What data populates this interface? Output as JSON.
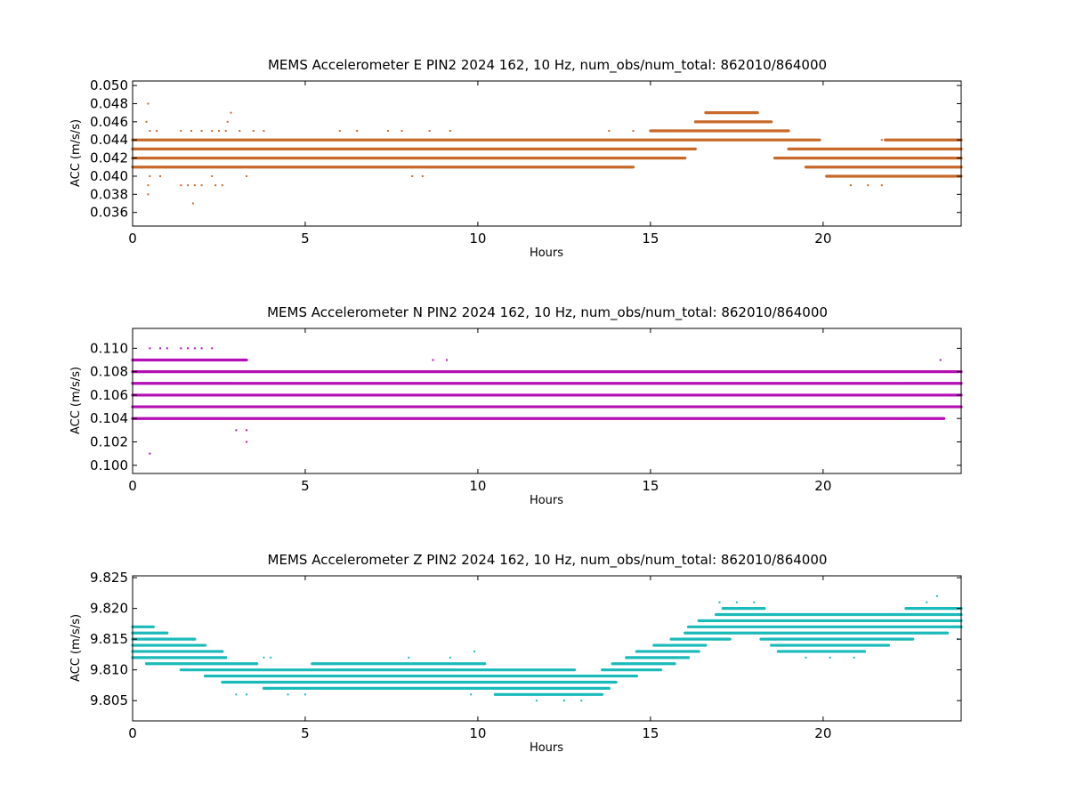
{
  "chart_data": [
    {
      "type": "scatter",
      "title": "MEMS Accelerometer E PIN2 2024 162, 10 Hz, num_obs/num_total: 862010/864000",
      "xlabel": "Hours",
      "ylabel": "ACC (m/s/s)",
      "xlim": [
        0,
        24
      ],
      "ylim": [
        0.0345,
        0.0505
      ],
      "xticks": [
        0,
        5,
        10,
        15,
        20
      ],
      "yticks": [
        0.036,
        0.038,
        0.04,
        0.042,
        0.044,
        0.046,
        0.048,
        0.05
      ],
      "color": "#c8692a",
      "grid": false,
      "legend": "none",
      "bands": [
        {
          "y": 0.047,
          "x": [
            16.6,
            18.1
          ]
        },
        {
          "y": 0.046,
          "x": [
            16.3,
            18.5
          ]
        },
        {
          "y": 0.045,
          "x": [
            15.0,
            19.0
          ]
        },
        {
          "y": 0.044,
          "x": [
            0.0,
            19.9
          ]
        },
        {
          "y": 0.044,
          "x": [
            21.8,
            24.0
          ]
        },
        {
          "y": 0.043,
          "x": [
            0.0,
            16.3
          ]
        },
        {
          "y": 0.043,
          "x": [
            19.0,
            24.0
          ]
        },
        {
          "y": 0.042,
          "x": [
            0.0,
            16.0
          ]
        },
        {
          "y": 0.042,
          "x": [
            18.6,
            24.0
          ]
        },
        {
          "y": 0.041,
          "x": [
            0.0,
            14.5
          ]
        },
        {
          "y": 0.041,
          "x": [
            19.5,
            24.0
          ]
        },
        {
          "y": 0.04,
          "x": [
            20.1,
            24.0
          ]
        }
      ],
      "points": [
        [
          0.45,
          0.048
        ],
        [
          0.4,
          0.046
        ],
        [
          0.5,
          0.045
        ],
        [
          0.7,
          0.045
        ],
        [
          1.4,
          0.045
        ],
        [
          1.7,
          0.045
        ],
        [
          2.0,
          0.045
        ],
        [
          2.3,
          0.045
        ],
        [
          2.5,
          0.045
        ],
        [
          2.7,
          0.045
        ],
        [
          2.85,
          0.047
        ],
        [
          2.75,
          0.046
        ],
        [
          3.1,
          0.045
        ],
        [
          3.5,
          0.045
        ],
        [
          3.8,
          0.045
        ],
        [
          6.0,
          0.045
        ],
        [
          6.5,
          0.045
        ],
        [
          7.4,
          0.045
        ],
        [
          7.8,
          0.045
        ],
        [
          8.6,
          0.045
        ],
        [
          9.2,
          0.045
        ],
        [
          13.8,
          0.045
        ],
        [
          14.5,
          0.045
        ],
        [
          0.5,
          0.04
        ],
        [
          0.8,
          0.04
        ],
        [
          0.45,
          0.039
        ],
        [
          0.45,
          0.038
        ],
        [
          1.4,
          0.039
        ],
        [
          1.6,
          0.039
        ],
        [
          1.8,
          0.039
        ],
        [
          2.0,
          0.039
        ],
        [
          2.3,
          0.04
        ],
        [
          2.4,
          0.039
        ],
        [
          2.6,
          0.039
        ],
        [
          1.75,
          0.037
        ],
        [
          3.3,
          0.04
        ],
        [
          8.1,
          0.04
        ],
        [
          8.4,
          0.04
        ],
        [
          20.8,
          0.039
        ],
        [
          21.3,
          0.039
        ],
        [
          21.7,
          0.039
        ],
        [
          22.0,
          0.04
        ],
        [
          21.7,
          0.044
        ],
        [
          23.5,
          0.04
        ],
        [
          16.0,
          0.045
        ]
      ]
    },
    {
      "type": "scatter",
      "title": "MEMS Accelerometer N PIN2 2024 162, 10 Hz, num_obs/num_total: 862010/864000",
      "xlabel": "Hours",
      "ylabel": "ACC (m/s/s)",
      "xlim": [
        0,
        24
      ],
      "ylim": [
        0.0993,
        0.1117
      ],
      "xticks": [
        0,
        5,
        10,
        15,
        20
      ],
      "yticks": [
        0.1,
        0.102,
        0.104,
        0.106,
        0.108,
        0.11
      ],
      "color": "#b40fb4",
      "grid": false,
      "legend": "none",
      "bands": [
        {
          "y": 0.109,
          "x": [
            0.0,
            3.3
          ]
        },
        {
          "y": 0.108,
          "x": [
            0.0,
            24.0
          ]
        },
        {
          "y": 0.107,
          "x": [
            0.0,
            24.0
          ]
        },
        {
          "y": 0.106,
          "x": [
            0.0,
            24.0
          ]
        },
        {
          "y": 0.105,
          "x": [
            0.0,
            24.0
          ]
        },
        {
          "y": 0.104,
          "x": [
            0.0,
            23.5
          ]
        }
      ],
      "points": [
        [
          0.5,
          0.11
        ],
        [
          0.8,
          0.11
        ],
        [
          1.0,
          0.11
        ],
        [
          1.4,
          0.11
        ],
        [
          1.6,
          0.11
        ],
        [
          1.8,
          0.11
        ],
        [
          2.0,
          0.11
        ],
        [
          2.3,
          0.11
        ],
        [
          8.7,
          0.109
        ],
        [
          9.1,
          0.109
        ],
        [
          23.4,
          0.109
        ],
        [
          3.0,
          0.103
        ],
        [
          3.3,
          0.103
        ],
        [
          3.3,
          0.102
        ],
        [
          0.5,
          0.101
        ]
      ]
    },
    {
      "type": "scatter",
      "title": "MEMS Accelerometer Z PIN2 2024 162, 10 Hz, num_obs/num_total: 862010/864000",
      "xlabel": "Hours",
      "ylabel": "ACC (m/s/s)",
      "xlim": [
        0,
        24
      ],
      "ylim": [
        9.8017,
        9.8253
      ],
      "xticks": [
        0,
        5,
        10,
        15,
        20
      ],
      "yticks": [
        9.805,
        9.81,
        9.815,
        9.82,
        9.825
      ],
      "color": "#1ababa",
      "grid": false,
      "legend": "none",
      "bands": [
        {
          "y": 9.817,
          "x": [
            0.0,
            0.6
          ]
        },
        {
          "y": 9.816,
          "x": [
            0.0,
            1.0
          ]
        },
        {
          "y": 9.815,
          "x": [
            0.0,
            1.8
          ]
        },
        {
          "y": 9.814,
          "x": [
            0.0,
            2.1
          ]
        },
        {
          "y": 9.813,
          "x": [
            0.0,
            2.6
          ]
        },
        {
          "y": 9.812,
          "x": [
            0.0,
            2.7
          ]
        },
        {
          "y": 9.811,
          "x": [
            0.4,
            3.6
          ]
        },
        {
          "y": 9.811,
          "x": [
            5.2,
            10.2
          ]
        },
        {
          "y": 9.81,
          "x": [
            1.4,
            12.8
          ]
        },
        {
          "y": 9.809,
          "x": [
            2.1,
            14.6
          ]
        },
        {
          "y": 9.808,
          "x": [
            2.6,
            14.0
          ]
        },
        {
          "y": 9.807,
          "x": [
            3.8,
            13.8
          ]
        },
        {
          "y": 9.806,
          "x": [
            10.5,
            13.6
          ]
        },
        {
          "y": 9.81,
          "x": [
            13.6,
            15.3
          ]
        },
        {
          "y": 9.811,
          "x": [
            13.9,
            15.7
          ]
        },
        {
          "y": 9.812,
          "x": [
            14.3,
            16.1
          ]
        },
        {
          "y": 9.813,
          "x": [
            14.6,
            16.4
          ]
        },
        {
          "y": 9.814,
          "x": [
            15.1,
            16.6
          ]
        },
        {
          "y": 9.815,
          "x": [
            15.6,
            17.3
          ]
        },
        {
          "y": 9.816,
          "x": [
            16.0,
            23.6
          ]
        },
        {
          "y": 9.817,
          "x": [
            16.1,
            24.0
          ]
        },
        {
          "y": 9.818,
          "x": [
            16.4,
            24.0
          ]
        },
        {
          "y": 9.819,
          "x": [
            16.9,
            24.0
          ]
        },
        {
          "y": 9.82,
          "x": [
            17.1,
            18.3
          ]
        },
        {
          "y": 9.82,
          "x": [
            22.4,
            24.0
          ]
        },
        {
          "y": 9.815,
          "x": [
            18.2,
            22.6
          ]
        },
        {
          "y": 9.814,
          "x": [
            18.5,
            21.9
          ]
        },
        {
          "y": 9.813,
          "x": [
            18.7,
            21.2
          ]
        }
      ],
      "points": [
        [
          3.0,
          9.806
        ],
        [
          3.3,
          9.806
        ],
        [
          4.5,
          9.806
        ],
        [
          5.0,
          9.806
        ],
        [
          9.8,
          9.806
        ],
        [
          11.0,
          9.806
        ],
        [
          12.5,
          9.805
        ],
        [
          13.0,
          9.805
        ],
        [
          11.7,
          9.805
        ],
        [
          3.8,
          9.812
        ],
        [
          4.0,
          9.812
        ],
        [
          8.0,
          9.812
        ],
        [
          9.2,
          9.812
        ],
        [
          9.9,
          9.813
        ],
        [
          17.0,
          9.821
        ],
        [
          17.5,
          9.821
        ],
        [
          18.0,
          9.821
        ],
        [
          19.3,
          9.818
        ],
        [
          20.0,
          9.818
        ],
        [
          20.5,
          9.818
        ],
        [
          23.3,
          9.822
        ],
        [
          23.0,
          9.821
        ],
        [
          23.9,
          9.815
        ],
        [
          19.5,
          9.812
        ],
        [
          20.2,
          9.812
        ],
        [
          20.9,
          9.812
        ]
      ]
    }
  ]
}
